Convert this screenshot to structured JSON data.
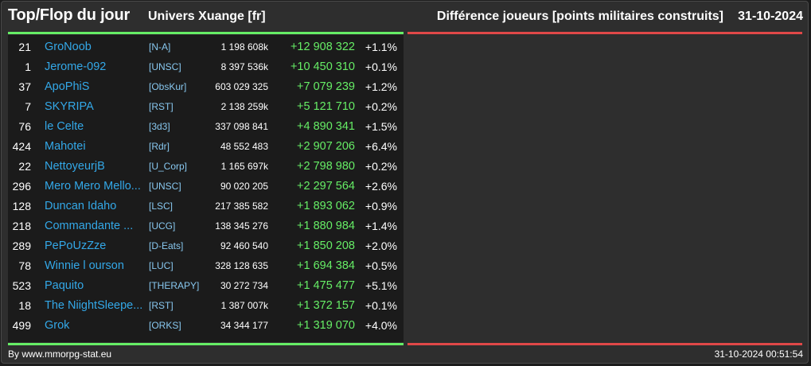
{
  "header": {
    "title": "Top/Flop du jour",
    "universe": "Univers Xuange [fr]",
    "metric": "Différence joueurs [points militaires construits]",
    "date": "31-10-2024"
  },
  "colors": {
    "top_accent": "#66ee66",
    "flop_accent": "#e04848",
    "name_link": "#33a8e8",
    "alliance": "#88c8f0"
  },
  "rows": [
    {
      "rank": "21",
      "name": "GroNoob",
      "ally": "[N-A]",
      "points": "1 198 608k",
      "diff": "+12 908 322",
      "pct": "+1.1%"
    },
    {
      "rank": "1",
      "name": "Jerome-092",
      "ally": "[UNSC]",
      "points": "8 397 536k",
      "diff": "+10 450 310",
      "pct": "+0.1%"
    },
    {
      "rank": "37",
      "name": "ApoPhiS",
      "ally": "[ObsKur]",
      "points": "603 029 325",
      "diff": "+7 079 239",
      "pct": "+1.2%"
    },
    {
      "rank": "7",
      "name": "SKYRIPA",
      "ally": "[RST]",
      "points": "2 138 259k",
      "diff": "+5 121 710",
      "pct": "+0.2%"
    },
    {
      "rank": "76",
      "name": "le Celte",
      "ally": "[3d3]",
      "points": "337 098 841",
      "diff": "+4 890 341",
      "pct": "+1.5%"
    },
    {
      "rank": "424",
      "name": "Mahotei",
      "ally": "[Rdr]",
      "points": "48 552 483",
      "diff": "+2 907 206",
      "pct": "+6.4%"
    },
    {
      "rank": "22",
      "name": "NettoyeurjB",
      "ally": "[U_Corp]",
      "points": "1 165 697k",
      "diff": "+2 798 980",
      "pct": "+0.2%"
    },
    {
      "rank": "296",
      "name": "Mero Mero Mello...",
      "ally": "[UNSC]",
      "points": "90 020 205",
      "diff": "+2 297 564",
      "pct": "+2.6%"
    },
    {
      "rank": "128",
      "name": "Duncan Idaho",
      "ally": "[LSC]",
      "points": "217 385 582",
      "diff": "+1 893 062",
      "pct": "+0.9%"
    },
    {
      "rank": "218",
      "name": "Commandante ...",
      "ally": "[UCG]",
      "points": "138 345 276",
      "diff": "+1 880 984",
      "pct": "+1.4%"
    },
    {
      "rank": "289",
      "name": "PePoUzZze",
      "ally": "[D-Eats]",
      "points": "92 460 540",
      "diff": "+1 850 208",
      "pct": "+2.0%"
    },
    {
      "rank": "78",
      "name": "Winnie l ourson",
      "ally": "[LUC]",
      "points": "328 128 635",
      "diff": "+1 694 384",
      "pct": "+0.5%"
    },
    {
      "rank": "523",
      "name": "Paquito",
      "ally": "[THERAPY]",
      "points": "30 272 734",
      "diff": "+1 475 477",
      "pct": "+5.1%"
    },
    {
      "rank": "18",
      "name": "The NiightSleepe...",
      "ally": "[RST]",
      "points": "1 387 007k",
      "diff": "+1 372 157",
      "pct": "+0.1%"
    },
    {
      "rank": "499",
      "name": "Grok",
      "ally": "[ORKS]",
      "points": "34 344 177",
      "diff": "+1 319 070",
      "pct": "+4.0%"
    }
  ],
  "footer": {
    "source": "By www.mmorpg-stat.eu",
    "timestamp": "31-10-2024 00:51:54"
  }
}
